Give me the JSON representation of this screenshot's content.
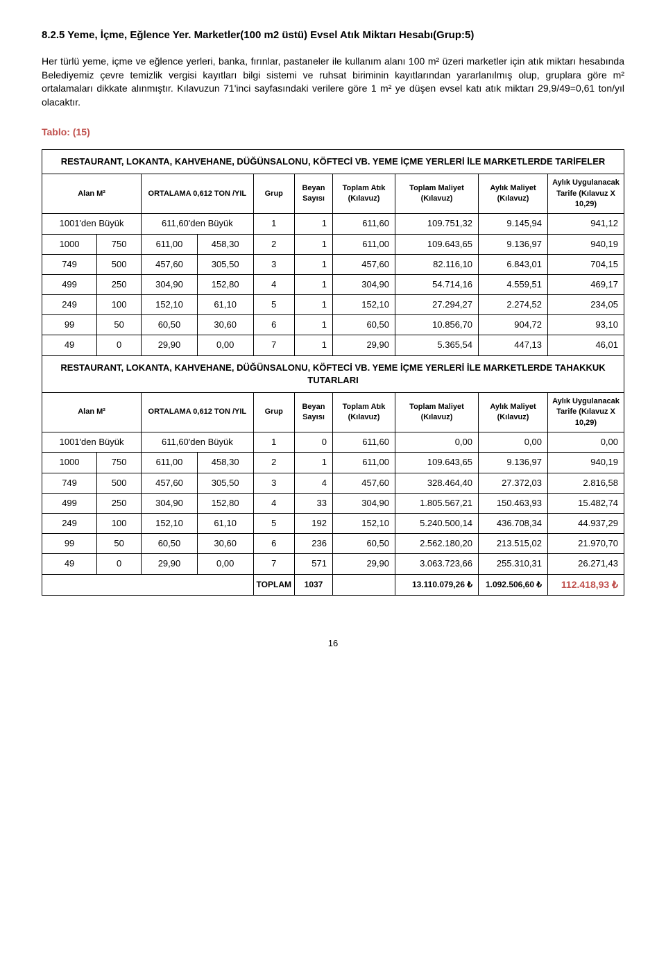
{
  "section_title": "8.2.5  Yeme, İçme, Eğlence Yer. Marketler(100 m2 üstü) Evsel Atık Miktarı Hesabı(Grup:5)",
  "body_text": "Her türlü yeme, içme ve eğlence yerleri, banka, fırınlar, pastaneler ile kullanım alanı 100 m² üzeri marketler için atık miktarı hesabında Belediyemiz çevre temizlik vergisi kayıtları bilgi sistemi ve ruhsat biriminin kayıtlarından yararlanılmış olup, gruplara göre m² ortalamaları dikkate alınmıştır. Kılavuzun 71'inci sayfasındaki verilere göre 1 m² ye düşen evsel katı atık miktarı 29,9/49=0,61 ton/yıl olacaktır.",
  "tablo_label": "Tablo: (15)",
  "page_number": "16",
  "table": {
    "title1": "RESTAURANT, LOKANTA, KAHVEHANE, DÜĞÜNSALONU, KÖFTECİ VB. YEME İÇME YERLERİ İLE MARKETLERDE TARİFELER",
    "title2": "RESTAURANT, LOKANTA, KAHVEHANE, DÜĞÜNSALONU, KÖFTECİ VB. YEME İÇME YERLERİ İLE MARKETLERDE TAHAKKUK TUTARLARI",
    "headers": {
      "alan": "Alan M²",
      "ortalama": "ORTALAMA 0,612 TON /YIL",
      "grup": "Grup",
      "beyan": "Beyan Sayısı",
      "atik": "Toplam Atık (Kılavuz)",
      "maliyet": "Toplam Maliyet (Kılavuz)",
      "aylik_maliyet": "Aylık Maliyet (Kılavuz)",
      "tarife": "Aylık Uygulanacak Tarife (Kılavuz X 10,29)"
    },
    "section1_rows": [
      {
        "a1": "1001'den Büyük",
        "a2": "",
        "o1": "611,60'den Büyük",
        "o2": "",
        "grup": "1",
        "beyan": "1",
        "atik": "611,60",
        "maliyet": "109.751,32",
        "aylik": "9.145,94",
        "tarife": "941,12",
        "merged": true
      },
      {
        "a1": "1000",
        "a2": "750",
        "o1": "611,00",
        "o2": "458,30",
        "grup": "2",
        "beyan": "1",
        "atik": "611,00",
        "maliyet": "109.643,65",
        "aylik": "9.136,97",
        "tarife": "940,19"
      },
      {
        "a1": "749",
        "a2": "500",
        "o1": "457,60",
        "o2": "305,50",
        "grup": "3",
        "beyan": "1",
        "atik": "457,60",
        "maliyet": "82.116,10",
        "aylik": "6.843,01",
        "tarife": "704,15"
      },
      {
        "a1": "499",
        "a2": "250",
        "o1": "304,90",
        "o2": "152,80",
        "grup": "4",
        "beyan": "1",
        "atik": "304,90",
        "maliyet": "54.714,16",
        "aylik": "4.559,51",
        "tarife": "469,17"
      },
      {
        "a1": "249",
        "a2": "100",
        "o1": "152,10",
        "o2": "61,10",
        "grup": "5",
        "beyan": "1",
        "atik": "152,10",
        "maliyet": "27.294,27",
        "aylik": "2.274,52",
        "tarife": "234,05"
      },
      {
        "a1": "99",
        "a2": "50",
        "o1": "60,50",
        "o2": "30,60",
        "grup": "6",
        "beyan": "1",
        "atik": "60,50",
        "maliyet": "10.856,70",
        "aylik": "904,72",
        "tarife": "93,10"
      },
      {
        "a1": "49",
        "a2": "0",
        "o1": "29,90",
        "o2": "0,00",
        "grup": "7",
        "beyan": "1",
        "atik": "29,90",
        "maliyet": "5.365,54",
        "aylik": "447,13",
        "tarife": "46,01"
      }
    ],
    "section2_rows": [
      {
        "a1": "1001'den Büyük",
        "a2": "",
        "o1": "611,60'den Büyük",
        "o2": "",
        "grup": "1",
        "beyan": "0",
        "atik": "611,60",
        "maliyet": "0,00",
        "aylik": "0,00",
        "tarife": "0,00",
        "merged": true
      },
      {
        "a1": "1000",
        "a2": "750",
        "o1": "611,00",
        "o2": "458,30",
        "grup": "2",
        "beyan": "1",
        "atik": "611,00",
        "maliyet": "109.643,65",
        "aylik": "9.136,97",
        "tarife": "940,19"
      },
      {
        "a1": "749",
        "a2": "500",
        "o1": "457,60",
        "o2": "305,50",
        "grup": "3",
        "beyan": "4",
        "atik": "457,60",
        "maliyet": "328.464,40",
        "aylik": "27.372,03",
        "tarife": "2.816,58"
      },
      {
        "a1": "499",
        "a2": "250",
        "o1": "304,90",
        "o2": "152,80",
        "grup": "4",
        "beyan": "33",
        "atik": "304,90",
        "maliyet": "1.805.567,21",
        "aylik": "150.463,93",
        "tarife": "15.482,74"
      },
      {
        "a1": "249",
        "a2": "100",
        "o1": "152,10",
        "o2": "61,10",
        "grup": "5",
        "beyan": "192",
        "atik": "152,10",
        "maliyet": "5.240.500,14",
        "aylik": "436.708,34",
        "tarife": "44.937,29"
      },
      {
        "a1": "99",
        "a2": "50",
        "o1": "60,50",
        "o2": "30,60",
        "grup": "6",
        "beyan": "236",
        "atik": "60,50",
        "maliyet": "2.562.180,20",
        "aylik": "213.515,02",
        "tarife": "21.970,70"
      },
      {
        "a1": "49",
        "a2": "0",
        "o1": "29,90",
        "o2": "0,00",
        "grup": "7",
        "beyan": "571",
        "atik": "29,90",
        "maliyet": "3.063.723,66",
        "aylik": "255.310,31",
        "tarife": "26.271,43"
      }
    ],
    "total": {
      "label": "TOPLAM",
      "beyan": "1037",
      "maliyet": "13.110.079,26 ₺",
      "aylik": "1.092.506,60 ₺",
      "tarife": "112.418,93 ₺"
    }
  }
}
